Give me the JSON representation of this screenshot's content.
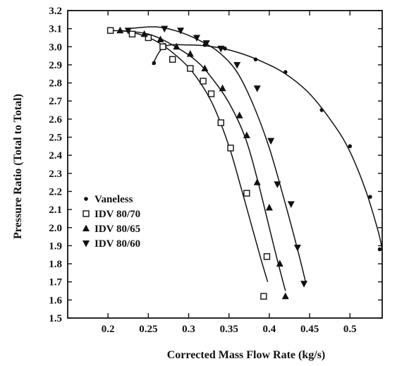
{
  "chart_data": {
    "type": "scatter",
    "title": "",
    "xlabel": "Corrected Mass Flow Rate (kg/s)",
    "ylabel": "Pressure Ratio (Total to Total)",
    "xlim": [
      0.15,
      0.54
    ],
    "ylim": [
      1.5,
      3.2
    ],
    "xticks": [
      0.2,
      0.25,
      0.3,
      0.35,
      0.4,
      0.45,
      0.5
    ],
    "xtick_labels": [
      "0.2",
      "0.25",
      "0.3",
      "0.35",
      "0.4",
      "0.45",
      "0.5"
    ],
    "yticks": [
      1.5,
      1.6,
      1.7,
      1.8,
      1.9,
      2.0,
      2.1,
      2.2,
      2.3,
      2.4,
      2.5,
      2.6,
      2.7,
      2.8,
      2.9,
      3.0,
      3.1,
      3.2
    ],
    "ytick_labels": [
      "1.5",
      "1.6",
      "1.7",
      "1.8",
      "1.9",
      "2.0",
      "2.1",
      "2.2",
      "2.3",
      "2.4",
      "2.5",
      "2.6",
      "2.7",
      "2.8",
      "2.9",
      "3.0",
      "3.1",
      "3.2"
    ],
    "grid": false,
    "legend_position": "bottom-left",
    "series": [
      {
        "name": "Vaneless",
        "marker": "circle",
        "x": [
          0.257,
          0.27,
          0.32,
          0.345,
          0.383,
          0.42,
          0.465,
          0.5,
          0.525,
          0.537
        ],
        "y": [
          2.91,
          3.01,
          3.01,
          2.99,
          2.93,
          2.86,
          2.65,
          2.45,
          2.17,
          1.88
        ],
        "curve_x": [
          0.255,
          0.27,
          0.3,
          0.33,
          0.36,
          0.39,
          0.42,
          0.45,
          0.48,
          0.5,
          0.52,
          0.535,
          0.54
        ],
        "curve_y": [
          2.9,
          3.0,
          3.01,
          3.0,
          2.97,
          2.92,
          2.85,
          2.74,
          2.57,
          2.42,
          2.2,
          1.98,
          1.88
        ]
      },
      {
        "name": "IDV 80/70",
        "marker": "square",
        "x": [
          0.203,
          0.23,
          0.25,
          0.268,
          0.28,
          0.302,
          0.318,
          0.328,
          0.34,
          0.352,
          0.372,
          0.397,
          0.393
        ],
        "y": [
          3.09,
          3.07,
          3.05,
          3.0,
          2.93,
          2.88,
          2.81,
          2.74,
          2.58,
          2.44,
          2.19,
          1.84,
          1.62
        ],
        "curve_x": [
          0.205,
          0.23,
          0.26,
          0.29,
          0.31,
          0.33,
          0.35,
          0.365,
          0.38,
          0.39,
          0.398
        ],
        "curve_y": [
          3.09,
          3.08,
          3.03,
          2.93,
          2.83,
          2.68,
          2.45,
          2.22,
          1.98,
          1.82,
          1.7
        ]
      },
      {
        "name": "IDV 80/65",
        "marker": "triangle-up",
        "x": [
          0.215,
          0.245,
          0.265,
          0.285,
          0.302,
          0.32,
          0.342,
          0.363,
          0.372,
          0.385,
          0.4,
          0.413,
          0.42
        ],
        "y": [
          3.09,
          3.07,
          3.04,
          3.0,
          2.96,
          2.88,
          2.77,
          2.62,
          2.51,
          2.25,
          2.11,
          1.8,
          1.62
        ],
        "curve_x": [
          0.215,
          0.25,
          0.28,
          0.31,
          0.33,
          0.35,
          0.37,
          0.385,
          0.4,
          0.41,
          0.42
        ],
        "curve_y": [
          3.09,
          3.07,
          3.01,
          2.92,
          2.82,
          2.69,
          2.5,
          2.27,
          2.0,
          1.82,
          1.65
        ]
      },
      {
        "name": "IDV 80/60",
        "marker": "triangle-down",
        "x": [
          0.225,
          0.27,
          0.29,
          0.31,
          0.322,
          0.34,
          0.36,
          0.385,
          0.402,
          0.41,
          0.427,
          0.435,
          0.443
        ],
        "y": [
          3.09,
          3.1,
          3.09,
          3.05,
          3.02,
          2.99,
          2.9,
          2.77,
          2.48,
          2.24,
          2.13,
          1.89,
          1.69
        ],
        "curve_x": [
          0.225,
          0.26,
          0.29,
          0.32,
          0.34,
          0.36,
          0.38,
          0.4,
          0.42,
          0.435,
          0.445
        ],
        "curve_y": [
          3.1,
          3.11,
          3.08,
          3.02,
          2.96,
          2.86,
          2.68,
          2.44,
          2.13,
          1.88,
          1.7
        ]
      }
    ]
  }
}
